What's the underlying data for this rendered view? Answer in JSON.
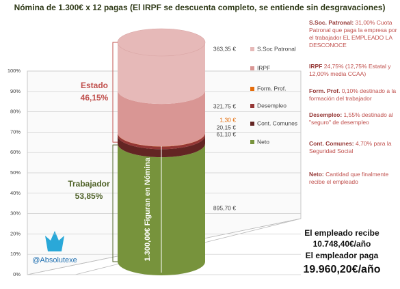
{
  "chart_data": {
    "type": "bar",
    "stacked": true,
    "title": "Nómina de 1.300€ x 12 pagas (El IRPF se descuenta completo, se entiende sin desgravaciones)",
    "series": [
      {
        "name": "Neto",
        "color": "#77933c",
        "values": [
          895.7
        ],
        "value_labels": [
          "895,70 €"
        ]
      },
      {
        "name": "Cont. Comunes",
        "color": "#632523",
        "values": [
          61.1
        ],
        "value_labels": [
          "61,10 €"
        ]
      },
      {
        "name": "Desempleo",
        "color": "#953735",
        "values": [
          20.15
        ],
        "value_labels": [
          "20,15 €"
        ]
      },
      {
        "name": "Form. Prof.",
        "color": "#e46c0a",
        "values": [
          1.3
        ],
        "value_labels": [
          "1,30 €"
        ]
      },
      {
        "name": "IRPF",
        "color": "#d99694",
        "values": [
          321.75
        ],
        "value_labels": [
          "321,75 €"
        ]
      },
      {
        "name": "S.Soc Patronal",
        "color": "#e6b9b8",
        "values": [
          363.35
        ],
        "value_labels": [
          "363,35 €"
        ]
      }
    ],
    "ylim": [
      0,
      1663.35
    ],
    "yticks": [
      {
        "value": 0,
        "label": "0%"
      },
      {
        "value": 166.335,
        "label": "10%"
      },
      {
        "value": 332.67,
        "label": "20%"
      },
      {
        "value": 499.005,
        "label": "30%"
      },
      {
        "value": 665.34,
        "label": "40%"
      },
      {
        "value": 831.675,
        "label": "50%"
      },
      {
        "value": 998.01,
        "label": "60%"
      },
      {
        "value": 1164.345,
        "label": "70%"
      },
      {
        "value": 1330.68,
        "label": "80%"
      },
      {
        "value": 1497.015,
        "label": "90%"
      },
      {
        "value": 1663.35,
        "label": "100%"
      }
    ],
    "grid": true,
    "annotations": {
      "estado": "Estado",
      "estado_pct": "46,15%",
      "trabajador": "Trabajador",
      "trabajador_pct": "53,85%",
      "nomina": "1.300,00€ Figuran en Nómina",
      "handle": "@Absolutexe"
    },
    "notes": [
      {
        "label": "S.Soc. Patronal:",
        "text": " 31,00% Cuota Patronal que paga la empresa por el trabajador EL EMPLEADO LA DESCONOCE"
      },
      {
        "label": "IRPF",
        "text": " 24,75% (12,75% Estatal y 12,00% media CCAA)"
      },
      {
        "label": "Form. Prof.",
        "text": " 0,10% destinado a la formación del trabajador"
      },
      {
        "label": "Desempleo:",
        "text": " 1,55% destinado al \"seguro\" de desempleo"
      },
      {
        "label": "Cont. Comunes:",
        "text": " 4,70% para la Seguridad Social"
      },
      {
        "label": "Neto:",
        "text": " Cantidad que finalmente recibe el empleado"
      }
    ],
    "summary": [
      "El empleado recibe",
      "10.748,40€/año",
      "El empleador paga",
      "19.960,20€/año"
    ]
  }
}
